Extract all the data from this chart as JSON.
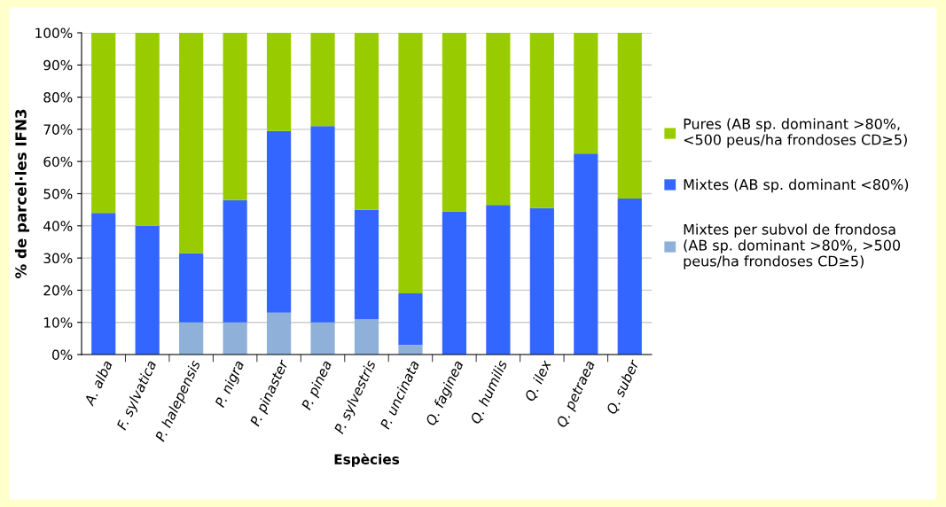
{
  "chart_data": {
    "type": "bar",
    "stacked": true,
    "xlabel": "Espècies",
    "ylabel": "% de parcel·les IFN3",
    "categories": [
      "A. alba",
      "F. sylvatica",
      "P. halepensis",
      "P. nigra",
      "P. pinaster",
      "P. pinea",
      "P. sylvestris",
      "P. uncinata",
      "Q. faginea",
      "Q. humilis",
      "Q. ilex",
      "Q. petraea",
      "Q. suber"
    ],
    "series": [
      {
        "name": "Mixtes per subvol de frondosa\n(AB sp. dominant >80%, >500\npeus/ha frondoses CD≥5)",
        "color": "#8fb0d8",
        "values": [
          0,
          0,
          10,
          10,
          13,
          10,
          11,
          3,
          0,
          0,
          0,
          0,
          0
        ]
      },
      {
        "name": "Mixtes (AB sp. dominant <80%)",
        "color": "#3366ff",
        "values": [
          44,
          40,
          21.5,
          38,
          56.5,
          61,
          34,
          16,
          44.5,
          46.5,
          45.5,
          62.5,
          48.5
        ]
      },
      {
        "name": "Pures (AB sp. dominant >80%,\n<500 peus/ha frondoses CD≥5)",
        "color": "#99cc00",
        "values": [
          56,
          60,
          68.5,
          52,
          30.5,
          29,
          55,
          81,
          55.5,
          53.5,
          54.5,
          37.5,
          51.5
        ]
      }
    ],
    "ylim": [
      0,
      100
    ],
    "yticks": [
      {
        "value": 0,
        "label": "0%"
      },
      {
        "value": 10,
        "label": "10%"
      },
      {
        "value": 20,
        "label": "20%"
      },
      {
        "value": 30,
        "label": "30%"
      },
      {
        "value": 40,
        "label": "40%"
      },
      {
        "value": 50,
        "label": "50%"
      },
      {
        "value": 60,
        "label": "60%"
      },
      {
        "value": 70,
        "label": "70%"
      },
      {
        "value": 80,
        "label": "80%"
      },
      {
        "value": 90,
        "label": "90%"
      },
      {
        "value": 100,
        "label": "100%"
      }
    ],
    "grid": "y",
    "legend": "right"
  }
}
